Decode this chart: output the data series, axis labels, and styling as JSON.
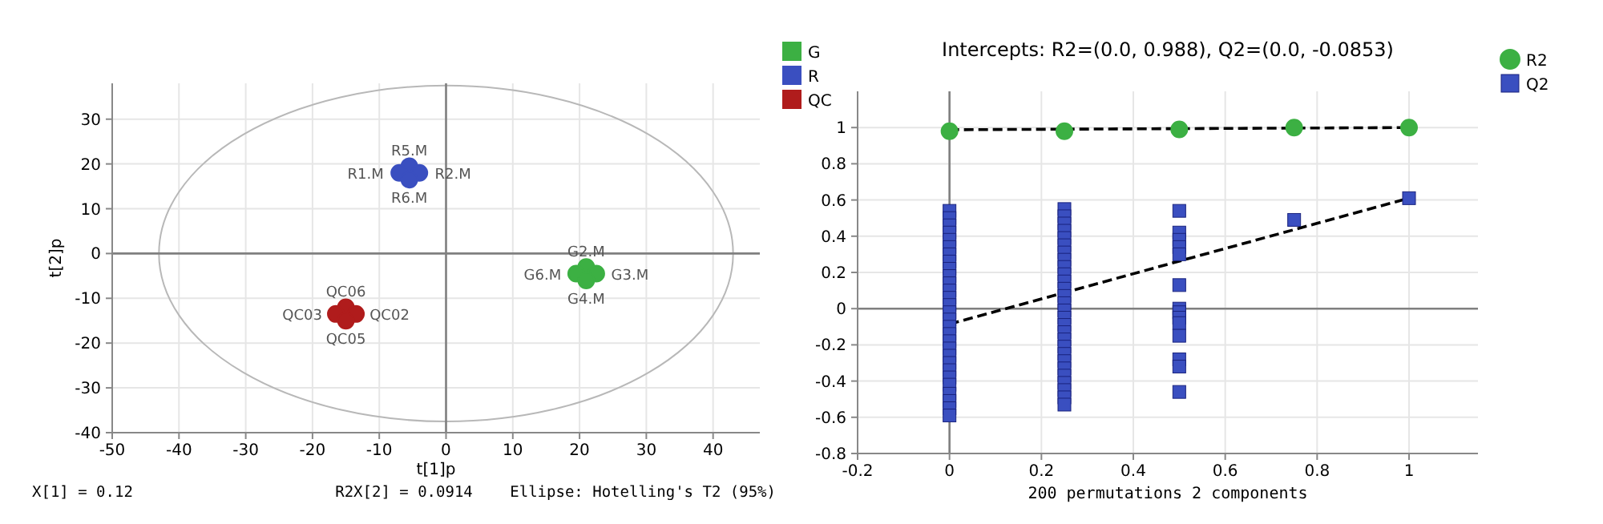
{
  "chart_data": [
    {
      "type": "scatter",
      "xlabel": "t[1]p",
      "ylabel": "t[2]p",
      "xlim": [
        -50,
        47
      ],
      "ylim": [
        -40,
        38
      ],
      "xticks": [
        -50,
        -40,
        -30,
        -20,
        -10,
        0,
        10,
        20,
        30,
        40
      ],
      "yticks": [
        -40,
        -30,
        -20,
        -10,
        0,
        10,
        20,
        30
      ],
      "grid": true,
      "legend": "top right",
      "marker": "circle",
      "series": [
        {
          "name": "G",
          "color": "#3cb043",
          "x": [
            21,
            19.5,
            22.5,
            21
          ],
          "values": [
            -3,
            -4.5,
            -4.5,
            -6
          ]
        },
        {
          "name": "R",
          "color": "#3a4fc0",
          "x": [
            -5.5,
            -7,
            -4,
            -5.5
          ],
          "values": [
            19.5,
            18,
            18,
            16.5
          ]
        },
        {
          "name": "QC",
          "color": "#b01c1c",
          "x": [
            -15,
            -16.5,
            -13.5,
            -15
          ],
          "values": [
            -12,
            -13.5,
            -13.5,
            -15
          ]
        }
      ],
      "annotations": [
        {
          "text": "R5.M",
          "x": -5.5,
          "y": 19.5
        },
        {
          "text": "R1.M",
          "x": -7,
          "y": 18
        },
        {
          "text": "R2.M",
          "x": -4,
          "y": 18
        },
        {
          "text": "R6.M",
          "x": -5.5,
          "y": 16.5
        },
        {
          "text": "G2.M",
          "x": 21,
          "y": -3
        },
        {
          "text": "G6.M",
          "x": 19.5,
          "y": -4.5
        },
        {
          "text": "G3.M",
          "x": 22.5,
          "y": -4.5
        },
        {
          "text": "G4.M",
          "x": 21,
          "y": -6
        },
        {
          "text": "QC06",
          "x": -15,
          "y": -12
        },
        {
          "text": "QC03",
          "x": -16.5,
          "y": -13.5
        },
        {
          "text": "QC02",
          "x": -13.5,
          "y": -13.5
        },
        {
          "text": "QC05",
          "x": -15,
          "y": -15
        },
        "X[1] = 0.12",
        "R2X[2] = 0.0914",
        "Ellipse: Hotelling's T2 (95%)"
      ]
    },
    {
      "type": "scatter",
      "title": "Intercepts: R2=(0.0, 0.988), Q2=(0.0, -0.0853)",
      "xlabel": "200 permutations 2 components",
      "xlim": [
        -0.2,
        1.15
      ],
      "ylim": [
        -0.8,
        1.2
      ],
      "xticks": [
        -0.2,
        0,
        0.2,
        0.4,
        0.6,
        0.8,
        1
      ],
      "yticks": [
        -0.8,
        -0.6,
        -0.4,
        -0.2,
        0,
        0.2,
        0.4,
        0.6,
        0.8,
        1
      ],
      "grid": true,
      "legend": "top right",
      "series": [
        {
          "type": "line",
          "color": "#000000",
          "marker": "none",
          "line_style": "dashed",
          "x": [
            0,
            1
          ],
          "values": [
            0.988,
            1
          ]
        },
        {
          "type": "line",
          "color": "#000000",
          "marker": "none",
          "line_style": "dashed",
          "x": [
            0,
            1
          ],
          "values": [
            -0.0853,
            0.61
          ]
        },
        {
          "name": "R2",
          "color": "#3cb043",
          "marker": "circle",
          "x": [
            0,
            0.25,
            0.5,
            0.75,
            1
          ],
          "values": [
            0.98,
            0.98,
            0.99,
            1,
            1
          ]
        },
        {
          "name": "Q2",
          "color": "#3a4fc0",
          "marker": "square",
          "x": [
            0,
            0,
            0,
            0,
            0,
            0,
            0,
            0,
            0,
            0,
            0,
            0,
            0,
            0,
            0,
            0,
            0,
            0,
            0,
            0,
            0,
            0,
            0,
            0,
            0,
            0,
            0,
            0,
            0,
            0.25,
            0.25,
            0.25,
            0.25,
            0.25,
            0.25,
            0.25,
            0.25,
            0.25,
            0.25,
            0.25,
            0.25,
            0.25,
            0.25,
            0.25,
            0.25,
            0.25,
            0.25,
            0.25,
            0.25,
            0.25,
            0.25,
            0.25,
            0.25,
            0.25,
            0.25,
            0.25,
            0.25,
            0.5,
            0.5,
            0.5,
            0.5,
            0.5,
            0.5,
            0.5,
            0.5,
            0.5,
            0.5,
            0.5,
            0.5,
            0.5,
            0.5,
            0.75,
            1
          ],
          "values": [
            0.54,
            0.5,
            0.46,
            0.42,
            0.38,
            0.34,
            0.3,
            0.26,
            0.22,
            0.18,
            0.14,
            0.1,
            0.06,
            0.02,
            -0.02,
            -0.06,
            -0.1,
            -0.14,
            -0.18,
            -0.22,
            -0.26,
            -0.3,
            -0.34,
            -0.38,
            -0.42,
            -0.47,
            -0.51,
            -0.55,
            -0.59,
            0.55,
            0.51,
            0.47,
            0.43,
            0.39,
            0.35,
            0.31,
            0.27,
            0.23,
            0.19,
            0.15,
            0.11,
            0.07,
            0.03,
            -0.01,
            -0.05,
            -0.09,
            -0.13,
            -0.17,
            -0.21,
            -0.25,
            -0.29,
            -0.33,
            -0.37,
            -0.41,
            -0.45,
            -0.49,
            -0.53,
            0.54,
            0.42,
            0.38,
            0.34,
            0.3,
            0.13,
            0.0,
            -0.02,
            -0.05,
            -0.08,
            -0.15,
            -0.28,
            -0.32,
            -0.46,
            0.49,
            0.61
          ]
        }
      ]
    }
  ]
}
